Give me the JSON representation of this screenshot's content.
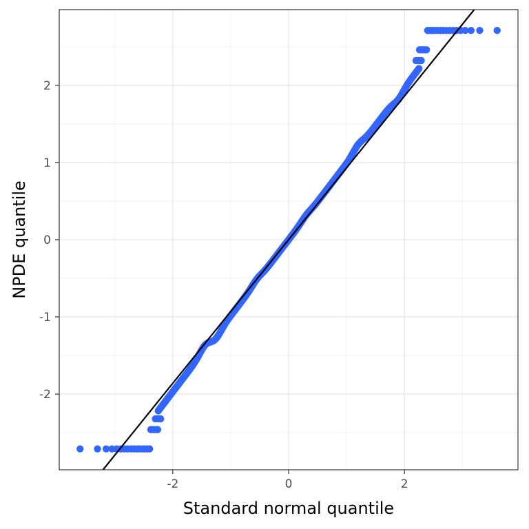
{
  "chart_data": {
    "type": "scatter",
    "title": "",
    "xlabel": "Standard normal quantile",
    "ylabel": "NPDE quantile",
    "xlim": [
      -3.96,
      3.96
    ],
    "ylim": [
      -2.98,
      2.98
    ],
    "x_ticks": [
      -2,
      0,
      2
    ],
    "x_tick_labels": [
      "-2",
      "0",
      "2"
    ],
    "y_ticks": [
      -2,
      -1,
      0,
      1,
      2
    ],
    "y_tick_labels": [
      "-2",
      "-1",
      "0",
      "1",
      "2"
    ],
    "grid": true,
    "legend": "none",
    "colors": {
      "points": "#3366ff",
      "reference_line": "#000000",
      "grid_major": "#ebebeb",
      "grid_minor": "#f3f3f3",
      "panel_border": "#333333",
      "tick_text": "#4d4d4d"
    },
    "reference_line": {
      "intercept": 0,
      "slope": 0.93
    },
    "series": [
      {
        "points_below": {
          "y": -2.71,
          "x": [
            -3.6,
            -3.3,
            -3.15,
            -3.05,
            -2.97,
            -2.9,
            -2.84,
            -2.78,
            -2.72,
            -2.67,
            -2.62,
            -2.57,
            -2.52,
            -2.48,
            -2.44,
            -2.4
          ]
        },
        "points_above": {
          "y": 2.71,
          "x": [
            2.4,
            2.44,
            2.48,
            2.52,
            2.57,
            2.62,
            2.67,
            2.72,
            2.78,
            2.84,
            2.9,
            2.97,
            3.05,
            3.15,
            3.3,
            3.6
          ]
        },
        "steps": [
          {
            "y": -2.46,
            "x_from": -2.38,
            "x_to": -2.26
          },
          {
            "y": -2.32,
            "x_from": -2.3,
            "x_to": -2.2
          },
          {
            "y": 2.32,
            "x_from": 2.2,
            "x_to": 2.3
          },
          {
            "y": 2.46,
            "x_from": 2.26,
            "x_to": 2.38
          }
        ],
        "main_curve": {
          "x_start": -2.25,
          "x_end": 2.25,
          "slope": 0.985,
          "wiggle": [
            {
              "x": -1.45,
              "dy": 0.06
            },
            {
              "x": -1.25,
              "dy": -0.05
            },
            {
              "x": -0.55,
              "dy": 0.03
            },
            {
              "x": 0.3,
              "dy": 0.02
            },
            {
              "x": 1.2,
              "dy": 0.05
            },
            {
              "x": 1.9,
              "dy": -0.05
            }
          ]
        }
      }
    ]
  }
}
